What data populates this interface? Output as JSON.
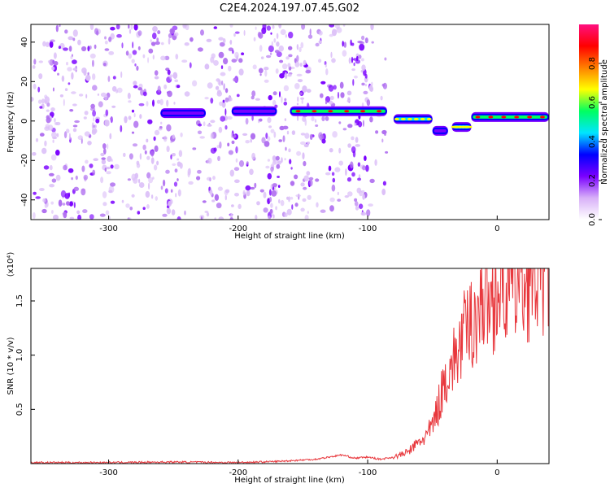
{
  "chart_data": [
    {
      "type": "heatmap",
      "title": "C2E4.2024.197.07.45.G02",
      "xlabel": "Height of straight line (km)",
      "ylabel": "Frequency (Hz)",
      "xlim": [
        -360,
        40
      ],
      "ylim": [
        -50,
        49
      ],
      "x_ticks": [
        -300,
        -200,
        -100,
        0
      ],
      "y_ticks": [
        -40,
        -20,
        0,
        20,
        40
      ],
      "colorbar": {
        "label": "Normalized spectral amplitude",
        "range": [
          0,
          1
        ],
        "ticks": [
          0.0,
          0.2,
          0.4,
          0.6,
          0.8
        ],
        "colors": [
          "#ffffff",
          "#d8b0f8",
          "#7a00ff",
          "#0000ff",
          "#00e5ff",
          "#00ff60",
          "#ffff00",
          "#ff8000",
          "#ff0000",
          "#ff1080"
        ]
      },
      "ridge": {
        "segments": [
          {
            "x": [
              -260,
              -225
            ],
            "freq": 4,
            "amplitude": 0.3
          },
          {
            "x": [
              -205,
              -170
            ],
            "freq": 5,
            "amplitude": 0.4
          },
          {
            "x": [
              -160,
              -85
            ],
            "freq": 5,
            "amplitude": 0.85
          },
          {
            "x": [
              -80,
              -50
            ],
            "freq": 1,
            "amplitude": 0.7
          },
          {
            "x": [
              -50,
              -38
            ],
            "freq": -5,
            "amplitude": 0.4
          },
          {
            "x": [
              -35,
              -20
            ],
            "freq": -3,
            "amplitude": 0.7
          },
          {
            "x": [
              -20,
              40
            ],
            "freq": 2,
            "amplitude": 0.9
          }
        ]
      },
      "noise_columns_x": [
        -345,
        -330,
        -315,
        -300,
        -280,
        -265,
        -250,
        -220,
        -205,
        -175,
        -165,
        -150,
        -130,
        -110,
        -100,
        -90
      ]
    },
    {
      "type": "line",
      "xlabel": "Height of straight line (km)",
      "ylabel": "SNR (10 * v/v)",
      "y_multiplier": "(x10⁴)",
      "xlim": [
        -360,
        40
      ],
      "ylim": [
        0,
        1.8
      ],
      "x_ticks": [
        -300,
        -200,
        -100,
        0
      ],
      "y_ticks": [
        0.5,
        1.0,
        1.5
      ],
      "y_tick_labels": [
        "0.5",
        "1.0",
        "1.5"
      ],
      "series": [
        {
          "color": "#e8383d",
          "x": [
            -360,
            -300,
            -250,
            -200,
            -170,
            -140,
            -120,
            -110,
            -100,
            -90,
            -80,
            -70,
            -60,
            -55,
            -50,
            -45,
            -40,
            -35,
            -30,
            -25,
            -20,
            -15,
            -10,
            -5,
            0,
            10,
            20,
            30,
            40
          ],
          "values": [
            0.01,
            0.01,
            0.015,
            0.01,
            0.02,
            0.04,
            0.08,
            0.05,
            0.06,
            0.04,
            0.06,
            0.1,
            0.2,
            0.25,
            0.35,
            0.55,
            0.8,
            0.9,
            1.05,
            1.2,
            1.3,
            1.4,
            1.55,
            1.5,
            1.6,
            1.65,
            1.7,
            1.75,
            1.8
          ]
        }
      ]
    }
  ]
}
